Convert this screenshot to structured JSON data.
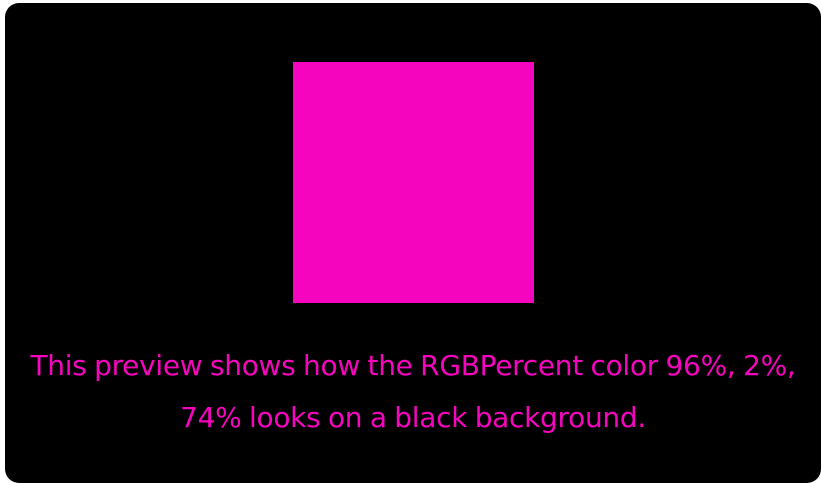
{
  "preview": {
    "swatch_color": "#F505BD",
    "text_color": "#F505BD",
    "background_color": "#000000",
    "caption_line1": "This preview shows how the RGBPercent color 96%, 2%,",
    "caption_line2": "74% looks on a black background."
  }
}
